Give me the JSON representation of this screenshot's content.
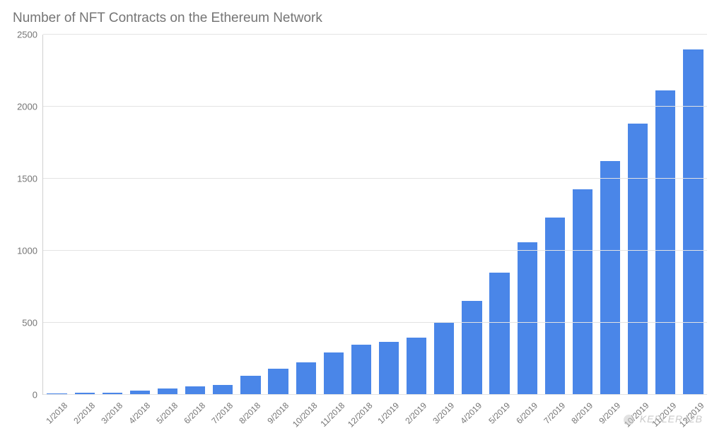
{
  "chart": {
    "type": "bar",
    "title": "Number of NFT Contracts on the Ethereum Network",
    "title_color": "#757575",
    "title_fontsize": 19,
    "background_color": "#ffffff",
    "bar_color": "#4a86e8",
    "grid_color": "#e3e3e3",
    "axis_text_color": "#757575",
    "tick_fontsize": 13,
    "xlabel_fontsize": 12,
    "bar_width": 0.72,
    "ylim": [
      0,
      2500
    ],
    "ytick_step": 500,
    "yticks": [
      0,
      500,
      1000,
      1500,
      2000,
      2500
    ],
    "categories": [
      "1/2018",
      "2/2018",
      "3/2018",
      "4/2018",
      "5/2018",
      "6/2018",
      "7/2018",
      "8/2018",
      "9/2018",
      "10/2018",
      "11/2018",
      "12/2018",
      "1/2019",
      "2/2019",
      "3/2019",
      "4/2019",
      "5/2019",
      "6/2019",
      "7/2019",
      "8/2019",
      "9/2019",
      "10/2019",
      "11/2019",
      "12/2019"
    ],
    "values": [
      8,
      15,
      15,
      30,
      45,
      60,
      70,
      130,
      180,
      225,
      295,
      350,
      370,
      395,
      500,
      650,
      850,
      1060,
      1230,
      1425,
      1625,
      1880,
      2115,
      2395
    ]
  },
  "watermark": {
    "text": "KEPLER42B"
  }
}
